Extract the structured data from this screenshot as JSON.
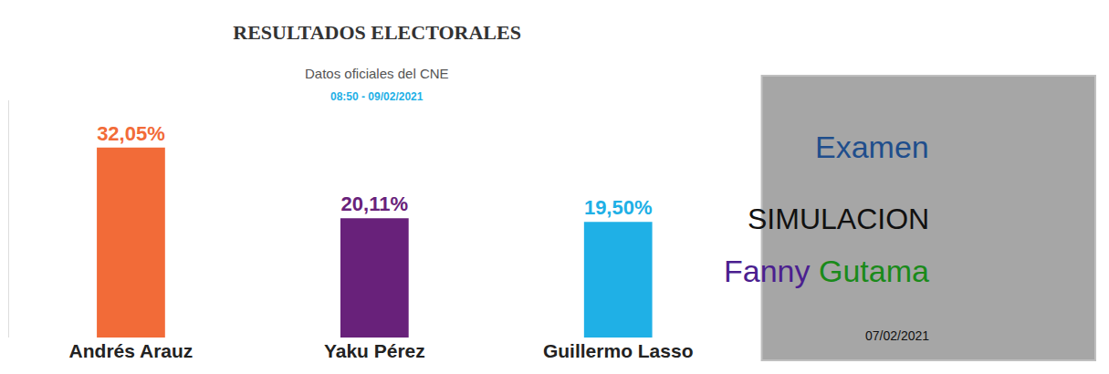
{
  "chart_data": {
    "type": "bar",
    "title": "RESULTADOS ELECTORALES",
    "subtitle": "Datos oficiales del CNE",
    "categories": [
      "Andrés Arauz",
      "Yaku Pérez",
      "Guillermo Lasso"
    ],
    "values": [
      32.05,
      20.11,
      19.5
    ],
    "value_labels": [
      "32,05%",
      "20,11%",
      "19,50%"
    ],
    "colors": [
      "#f26b38",
      "#68217a",
      "#1fb0e6"
    ],
    "data_labels": true,
    "ylim": [
      0,
      40
    ],
    "grid": false,
    "tick_labels": "x",
    "annotations": [
      "08:50 - 09/02/2021",
      "Examen",
      "SIMULACION",
      "Fanny Gutama",
      "07/02/2021"
    ]
  }
}
